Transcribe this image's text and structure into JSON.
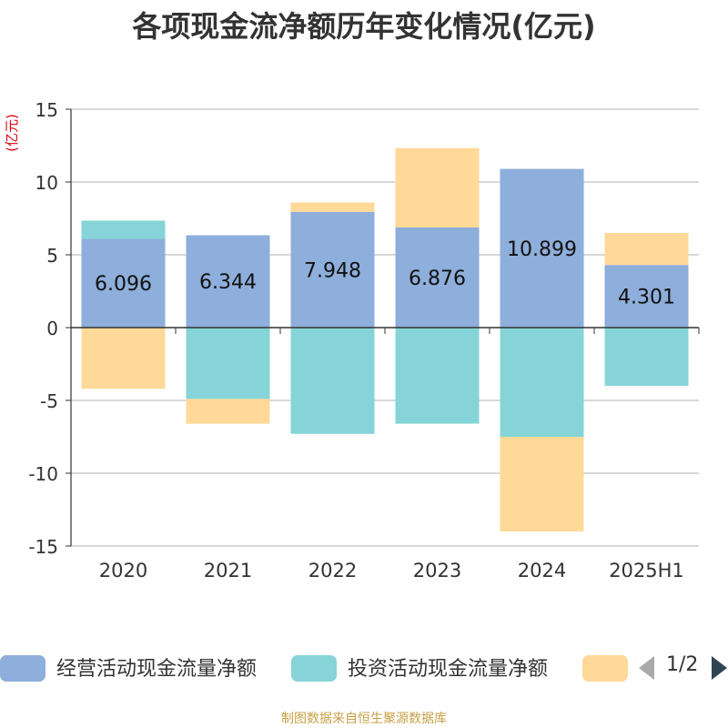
{
  "title": "各项现金流净额历年变化情况(亿元)",
  "source": "制图数据来自恒生聚源数据库",
  "legend_page": "1/2",
  "chart_data": {
    "type": "bar",
    "stacked": true,
    "ylabel": "(亿元)",
    "ylim": [
      -15,
      15
    ],
    "yticks": [
      15,
      10,
      5,
      0,
      -5,
      -10,
      -15
    ],
    "categories": [
      "2020",
      "2021",
      "2022",
      "2023",
      "2024",
      "2025H1"
    ],
    "series": [
      {
        "name": "经营活动现金流量净额",
        "color": "#8eaedb",
        "values": [
          6.096,
          6.344,
          7.948,
          6.876,
          10.899,
          4.301
        ],
        "labels": [
          "6.096",
          "6.344",
          "7.948",
          "6.876",
          "10.899",
          "4.301"
        ]
      },
      {
        "name": "投资活动现金流量净额",
        "color": "#86d4d7",
        "values": [
          1.25,
          -4.9,
          -7.3,
          -6.6,
          -7.5,
          -4.0
        ]
      },
      {
        "name": "",
        "color": "#fed998",
        "values": [
          -4.2,
          -1.7,
          0.65,
          5.45,
          -6.5,
          2.2
        ]
      }
    ],
    "grid": true,
    "legend_position": "bottom"
  }
}
